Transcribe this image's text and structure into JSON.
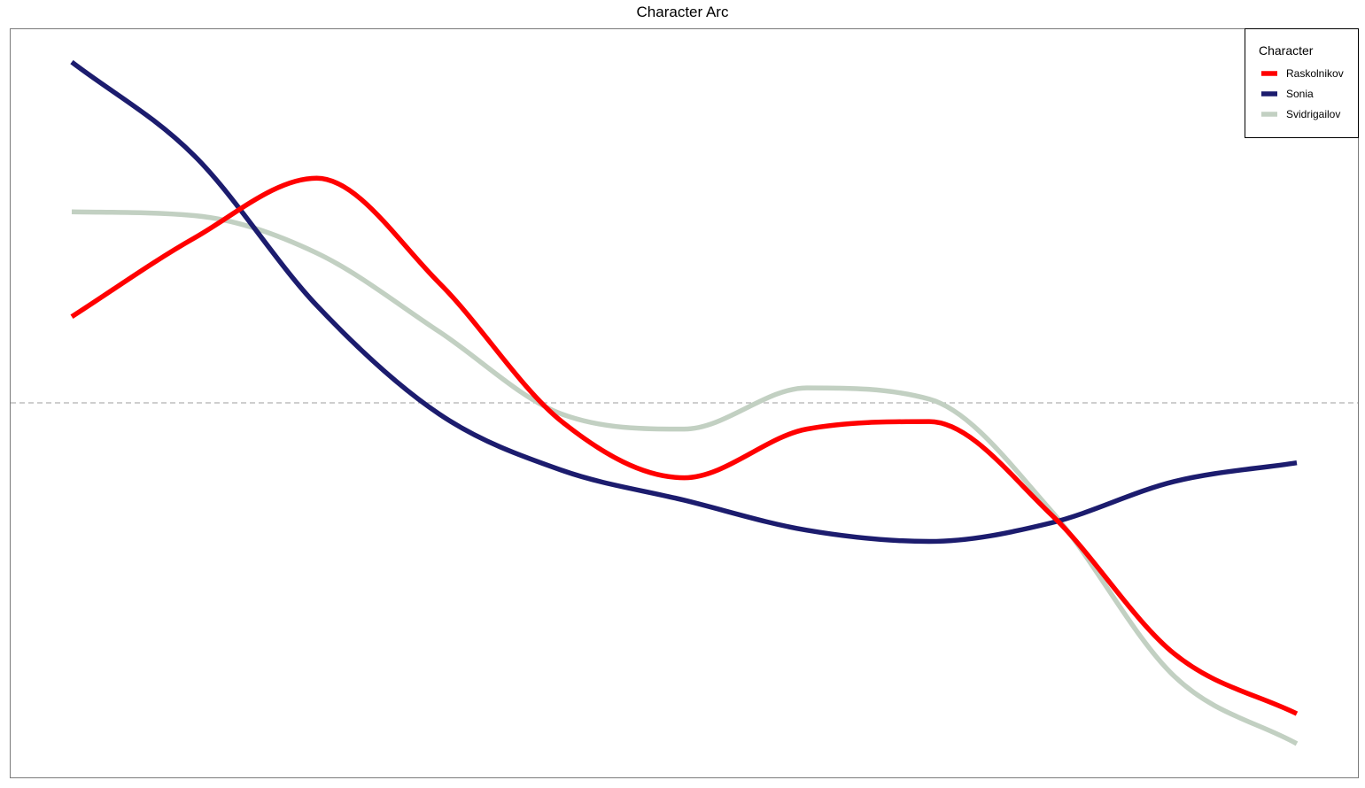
{
  "chart_data": {
    "type": "line",
    "title": "Character Arc",
    "xlabel": "",
    "ylabel": "",
    "x": [
      0,
      1,
      2,
      3,
      4,
      5,
      6,
      7,
      8,
      9,
      10
    ],
    "ylim": [
      -1,
      1
    ],
    "reference_line": {
      "y": 0,
      "style": "dashed"
    },
    "legend": {
      "title": "Character",
      "position": "top-right"
    },
    "series": [
      {
        "name": "Raskolnikov",
        "color": "#FF0000",
        "values": [
          0.23,
          0.44,
          0.6,
          0.32,
          -0.05,
          -0.2,
          -0.07,
          -0.05,
          -0.3,
          -0.67,
          -0.83
        ]
      },
      {
        "name": "Sonia",
        "color": "#1C1C6E",
        "values": [
          0.91,
          0.66,
          0.26,
          -0.03,
          -0.18,
          -0.26,
          -0.34,
          -0.37,
          -0.32,
          -0.21,
          -0.16
        ]
      },
      {
        "name": "Svidrigailov",
        "color": "#C2D0C2",
        "values": [
          0.51,
          0.5,
          0.4,
          0.19,
          -0.03,
          -0.07,
          0.04,
          0.01,
          -0.29,
          -0.73,
          -0.91
        ]
      }
    ]
  }
}
